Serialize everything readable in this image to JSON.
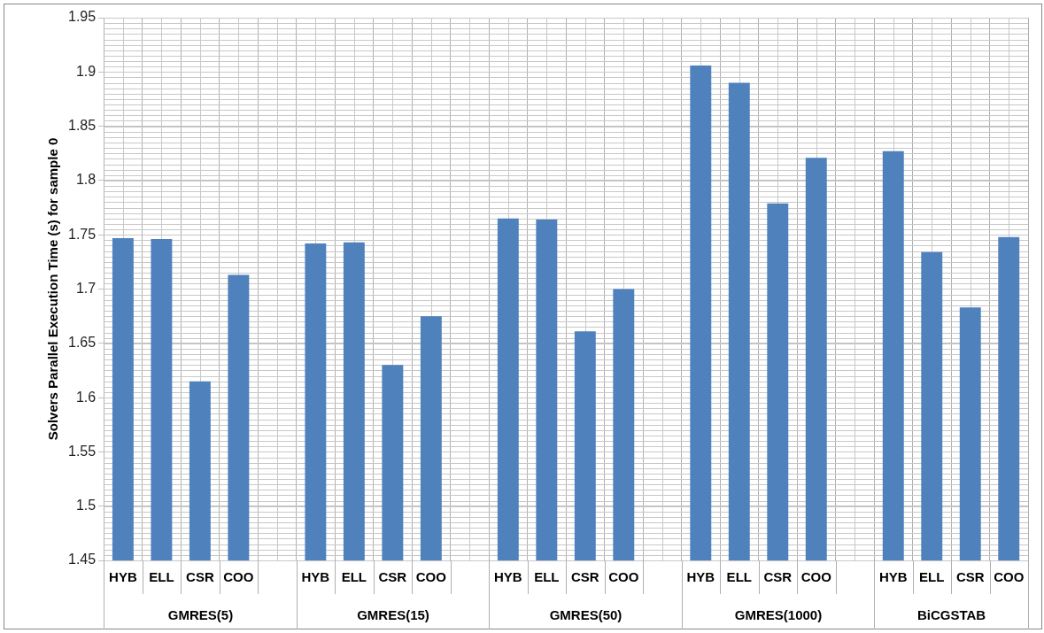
{
  "chart_data": {
    "type": "bar",
    "ylabel": "Solvers Parallel Execution Time (s) for sample 0",
    "categories": [
      "HYB",
      "ELL",
      "CSR",
      "COO",
      null,
      "HYB",
      "ELL",
      "CSR",
      "COO",
      null,
      "HYB",
      "ELL",
      "CSR",
      "COO",
      null,
      "HYB",
      "ELL",
      "CSR",
      "COO",
      null,
      "HYB",
      "ELL",
      "CSR",
      "COO"
    ],
    "values": [
      1.747,
      1.746,
      1.615,
      1.713,
      null,
      1.742,
      1.743,
      1.63,
      1.675,
      null,
      1.765,
      1.764,
      1.661,
      1.7,
      null,
      1.906,
      1.89,
      1.779,
      1.821,
      null,
      1.827,
      1.734,
      1.683,
      1.748
    ],
    "color": "#4f81bd",
    "annotations": [
      "GMRES(5)",
      "GMRES(15)",
      "GMRES(50)",
      "GMRES(1000)",
      "BiCGSTAB"
    ],
    "ylim": [
      1.45,
      1.95
    ],
    "yticks": [
      1.45,
      1.5,
      1.55,
      1.6,
      1.65,
      1.7,
      1.75,
      1.8,
      1.85,
      1.9,
      1.95
    ],
    "grid": true
  }
}
